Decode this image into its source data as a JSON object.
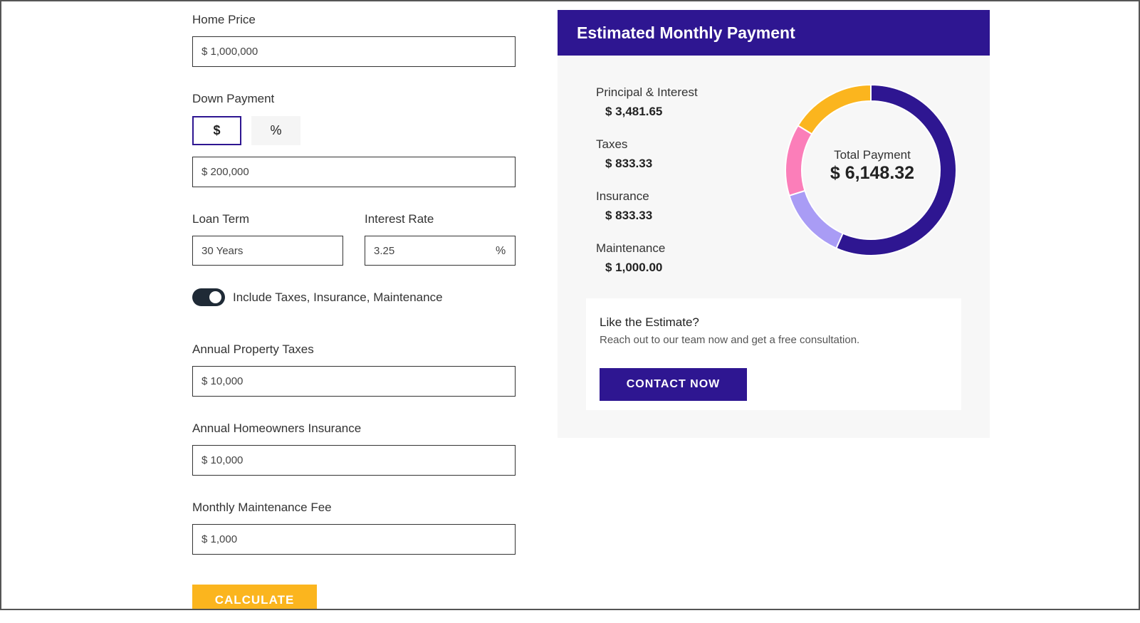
{
  "form": {
    "home_price": {
      "label": "Home Price",
      "value": "$ 1,000,000"
    },
    "down_payment": {
      "label": "Down Payment",
      "toggle": [
        "$",
        "%"
      ],
      "value": "$ 200,000"
    },
    "loan_term": {
      "label": "Loan Term",
      "value": "30 Years"
    },
    "interest_rate": {
      "label": "Interest Rate",
      "value": "3.25",
      "suffix": "%"
    },
    "include_toggle": "Include Taxes, Insurance, Maintenance",
    "property_taxes": {
      "label": "Annual Property Taxes",
      "value": "$ 10,000"
    },
    "insurance": {
      "label": "Annual Homeowners Insurance",
      "value": "$ 10,000"
    },
    "maintenance": {
      "label": "Monthly Maintenance Fee",
      "value": "$ 1,000"
    },
    "calculate": "CALCULATE"
  },
  "result": {
    "title": "Estimated Monthly Payment",
    "cta": {
      "title": "Like the Estimate?",
      "text": "Reach out to our team now and get a free consultation.",
      "button": "CONTACT NOW"
    }
  },
  "chart_data": {
    "type": "donut",
    "categories": [
      "Principal & Interest",
      "Taxes",
      "Insurance",
      "Maintenance"
    ],
    "values": [
      3481.65,
      833.33,
      833.33,
      1000
    ],
    "value_labels": [
      "$ 3,481.65",
      "$ 833.33",
      "$ 833.33",
      "$ 1,000.00"
    ],
    "colors": [
      "#2e1691",
      "#a99cf5",
      "#fb7eb9",
      "#fbb51e"
    ],
    "center_title": "Total Payment",
    "center_label": "$ 6,148.32"
  }
}
